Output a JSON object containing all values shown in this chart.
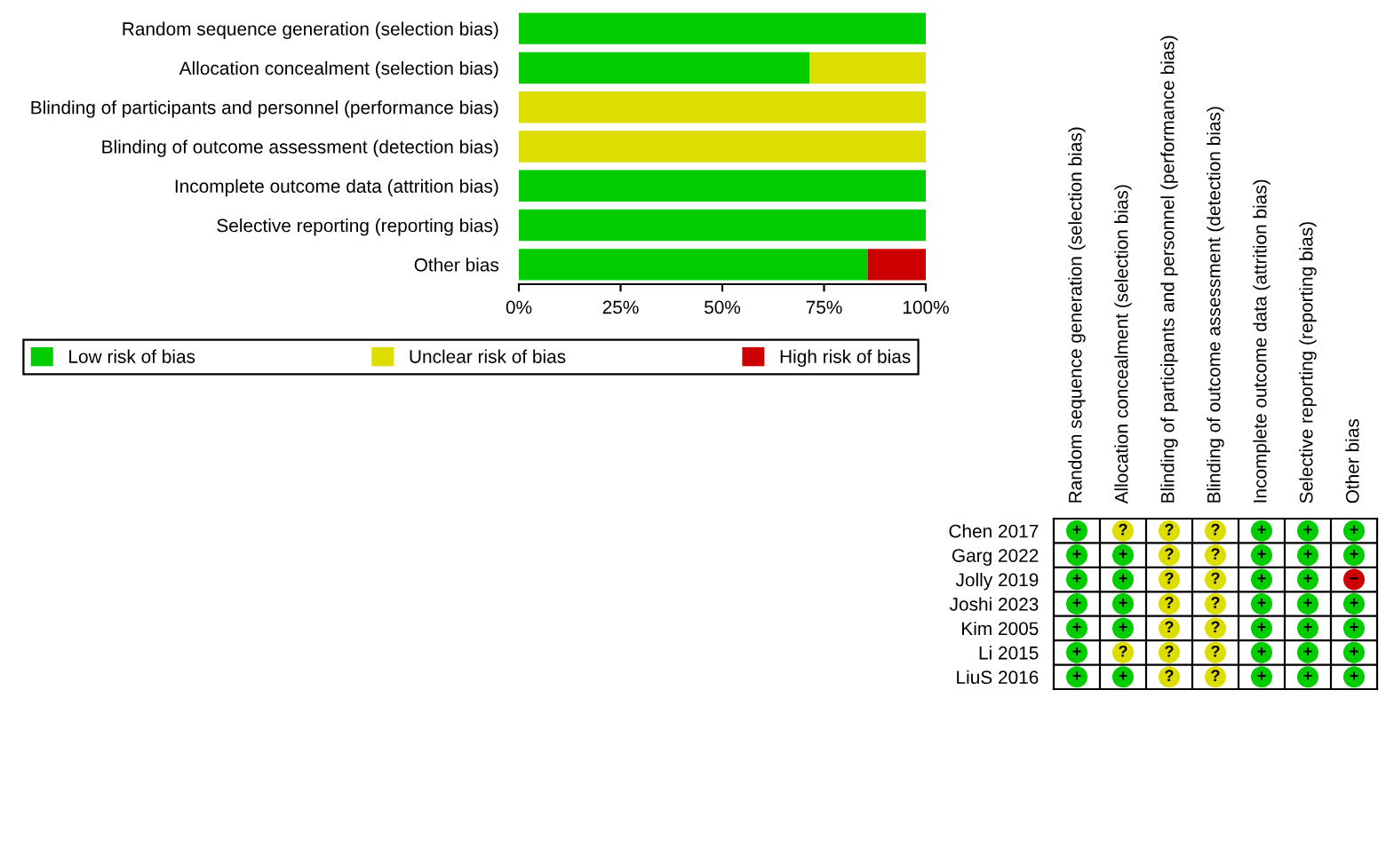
{
  "chart_data": [
    {
      "type": "bar",
      "orientation": "horizontal",
      "stacked": true,
      "categories": [
        "Random sequence generation (selection bias)",
        "Allocation concealment (selection bias)",
        "Blinding of participants and personnel (performance bias)",
        "Blinding of outcome assessment (detection bias)",
        "Incomplete outcome data (attrition bias)",
        "Selective reporting (reporting bias)",
        "Other bias"
      ],
      "series": [
        {
          "name": "Low risk of bias",
          "color": "#00cc00",
          "values": [
            100,
            71.4,
            0,
            0,
            100,
            100,
            85.7
          ]
        },
        {
          "name": "Unclear risk of bias",
          "color": "#dddd00",
          "values": [
            0,
            28.6,
            100,
            100,
            0,
            0,
            0
          ]
        },
        {
          "name": "High risk of bias",
          "color": "#cc0000",
          "values": [
            0,
            0,
            0,
            0,
            0,
            0,
            14.3
          ]
        }
      ],
      "xlim": [
        0,
        100
      ],
      "xticks": [
        {
          "value": 0,
          "label": "0%"
        },
        {
          "value": 25,
          "label": "25%"
        },
        {
          "value": 50,
          "label": "50%"
        },
        {
          "value": 75,
          "label": "75%"
        },
        {
          "value": 100,
          "label": "100%"
        }
      ],
      "legend": "bottom",
      "grid": false
    },
    {
      "type": "other",
      "categories": [
        "Random sequence generation (selection bias)",
        "Allocation concealment (selection bias)",
        "Blinding of participants and personnel (performance bias)",
        "Blinding of outcome assessment (detection bias)",
        "Incomplete outcome data (attrition bias)",
        "Selective reporting (reporting bias)",
        "Other bias"
      ],
      "y_categories": [
        "Chen 2017",
        "Garg 2022",
        "Jolly 2019",
        "Joshi 2023",
        "Kim 2005",
        "Li 2015",
        "LiuS 2016"
      ],
      "cell_labels": [
        [
          "+",
          "?",
          "?",
          "?",
          "+",
          "+",
          "+"
        ],
        [
          "+",
          "+",
          "?",
          "?",
          "+",
          "+",
          "+"
        ],
        [
          "+",
          "+",
          "?",
          "?",
          "+",
          "+",
          "−"
        ],
        [
          "+",
          "+",
          "?",
          "?",
          "+",
          "+",
          "+"
        ],
        [
          "+",
          "+",
          "?",
          "?",
          "+",
          "+",
          "+"
        ],
        [
          "+",
          "?",
          "?",
          "?",
          "+",
          "+",
          "+"
        ],
        [
          "+",
          "+",
          "?",
          "?",
          "+",
          "+",
          "+"
        ]
      ],
      "colors": [
        [
          "#00cc00",
          "#dddd00",
          "#dddd00",
          "#dddd00",
          "#00cc00",
          "#00cc00",
          "#00cc00"
        ],
        [
          "#00cc00",
          "#00cc00",
          "#dddd00",
          "#dddd00",
          "#00cc00",
          "#00cc00",
          "#00cc00"
        ],
        [
          "#00cc00",
          "#00cc00",
          "#dddd00",
          "#dddd00",
          "#00cc00",
          "#00cc00",
          "#cc0000"
        ],
        [
          "#00cc00",
          "#00cc00",
          "#dddd00",
          "#dddd00",
          "#00cc00",
          "#00cc00",
          "#00cc00"
        ],
        [
          "#00cc00",
          "#00cc00",
          "#dddd00",
          "#dddd00",
          "#00cc00",
          "#00cc00",
          "#00cc00"
        ],
        [
          "#00cc00",
          "#dddd00",
          "#dddd00",
          "#dddd00",
          "#00cc00",
          "#00cc00",
          "#00cc00"
        ],
        [
          "#00cc00",
          "#00cc00",
          "#dddd00",
          "#dddd00",
          "#00cc00",
          "#00cc00",
          "#00cc00"
        ]
      ]
    }
  ]
}
